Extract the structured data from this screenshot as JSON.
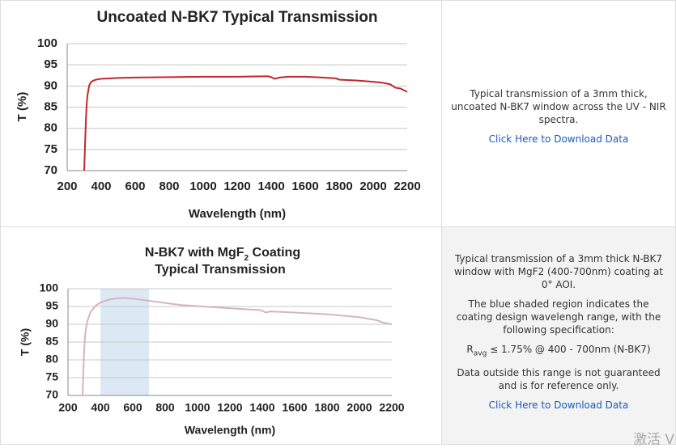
{
  "chart_data": [
    {
      "type": "line",
      "title": "Uncoated N-BK7 Typical Transmission",
      "xlabel": "Wavelength (nm)",
      "ylabel": "T (%)",
      "x": [
        300,
        305,
        310,
        315,
        320,
        330,
        340,
        350,
        370,
        400,
        500,
        600,
        800,
        1000,
        1200,
        1380,
        1400,
        1420,
        1450,
        1500,
        1600,
        1700,
        1780,
        1800,
        1900,
        2000,
        2050,
        2100,
        2130,
        2160,
        2200
      ],
      "values": [
        70,
        76,
        82,
        86,
        88,
        90.2,
        90.9,
        91.2,
        91.5,
        91.7,
        91.9,
        92,
        92.1,
        92.2,
        92.2,
        92.3,
        92.1,
        91.7,
        92,
        92.2,
        92.2,
        92,
        91.8,
        91.5,
        91.3,
        91,
        90.8,
        90.4,
        89.6,
        89.4,
        88.6
      ],
      "color": "#c0272d",
      "xlim": [
        200,
        2200
      ],
      "xticks": [
        200,
        400,
        600,
        800,
        1000,
        1200,
        1400,
        1600,
        1800,
        2000,
        2200
      ],
      "ylim": [
        70,
        100
      ],
      "yticks": [
        70,
        75,
        80,
        85,
        90,
        95,
        100
      ],
      "grid": true
    },
    {
      "type": "line",
      "title": "N-BK7 with MgF",
      "title_sub": "2",
      "title_end": " Coating",
      "subtitle": "Typical Transmission",
      "xlabel": "Wavelength (nm)",
      "ylabel": "T (%)",
      "x": [
        290,
        295,
        300,
        305,
        310,
        320,
        340,
        370,
        400,
        450,
        500,
        550,
        600,
        700,
        800,
        900,
        1000,
        1200,
        1380,
        1400,
        1420,
        1450,
        1600,
        1800,
        2000,
        2100,
        2150,
        2200
      ],
      "values": [
        70,
        77,
        83,
        86.5,
        88.5,
        91,
        93.5,
        95.2,
        96.1,
        96.9,
        97.3,
        97.4,
        97.2,
        96.6,
        96,
        95.4,
        95.1,
        94.5,
        94,
        93.8,
        93.3,
        93.6,
        93.3,
        92.8,
        92,
        91.2,
        90.4,
        90
      ],
      "color": "#d4b5bd",
      "shade": [
        400,
        700
      ],
      "shade_color": "#dce9f5",
      "xlim": [
        200,
        2200
      ],
      "xticks": [
        200,
        400,
        600,
        800,
        1000,
        1200,
        1400,
        1600,
        1800,
        2000,
        2200
      ],
      "ylim": [
        70,
        100
      ],
      "yticks": [
        70,
        75,
        80,
        85,
        90,
        95,
        100
      ],
      "grid": true
    }
  ],
  "rows": [
    {
      "paragraphs": [
        "Typical transmission of a 3mm thick, uncoated N-BK7 window across the UV - NIR spectra."
      ],
      "link": "Click Here to Download Data"
    },
    {
      "paragraphs": [
        "Typical transmission of a 3mm thick N-BK7 window with MgF2 (400-700nm) coating at 0° AOI.",
        "The blue shaded region indicates the coating design wavelengh range, with the following specification:"
      ],
      "spec": {
        "symbol": "R",
        "sub": "avg",
        "text": " ≤ 1.75% @ 400 - 700nm (N-BK7)"
      },
      "note": "Data outside this range is not guaranteed and is for reference only.",
      "link": "Click Here to Download Data"
    }
  ],
  "watermark": "激活 V"
}
